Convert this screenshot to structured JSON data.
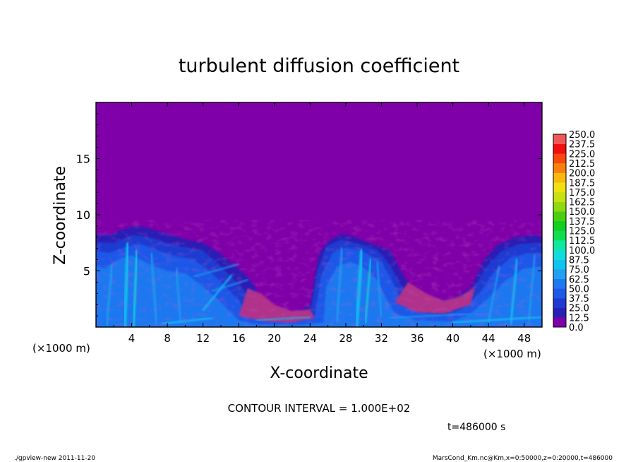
{
  "chart_data": {
    "type": "heatmap",
    "title": "turbulent diffusion coefficient",
    "xlabel": "X-coordinate",
    "ylabel": "Z-coordinate",
    "x_unit": "(×1000 m)",
    "y_unit": "(×1000 m)",
    "xlim": [
      0,
      50
    ],
    "ylim": [
      0,
      20
    ],
    "x_ticks": [
      "4",
      "8",
      "12",
      "16",
      "20",
      "24",
      "28",
      "32",
      "36",
      "40",
      "44",
      "48"
    ],
    "y_ticks": [
      "5",
      "10",
      "15"
    ],
    "field_description": "near-zero everywhere above ~9 km; turbulent plumes reaching ~7-9 km at x=0-16, 24-32 and 42-50 km with values mostly 25-75",
    "colorbar": {
      "levels": [
        "0.0",
        "12.5",
        "25.0",
        "37.5",
        "50.0",
        "62.5",
        "75.0",
        "87.5",
        "100.0",
        "112.5",
        "125.0",
        "137.5",
        "150.0",
        "162.5",
        "175.0",
        "187.5",
        "200.0",
        "212.5",
        "225.0",
        "237.5",
        "250.0"
      ],
      "colors": [
        "#7f00a8",
        "#2a1fb4",
        "#1e3ad0",
        "#1e58e8",
        "#1f78f0",
        "#1fa0f0",
        "#10c4f0",
        "#10dcdc",
        "#10e8a0",
        "#10dc50",
        "#10d020",
        "#48d010",
        "#90d810",
        "#c8e010",
        "#f0e010",
        "#f8b810",
        "#f88010",
        "#f84810",
        "#f01010",
        "#f05858"
      ]
    },
    "contour_interval": "CONTOUR INTERVAL = 1.000E+02",
    "time_label": "t=486000 s"
  },
  "footer": {
    "program": "./gpview-new  2011-11-20",
    "source": "MarsCond_Km.nc@Km,x=0:50000,z=0:20000,t=486000"
  }
}
